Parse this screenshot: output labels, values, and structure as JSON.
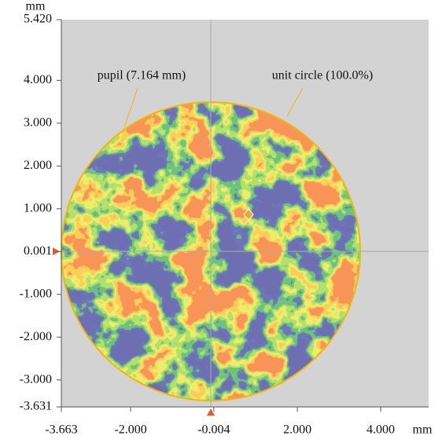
{
  "chart_data": {
    "type": "pupil-map",
    "annotations": [
      "pupil (7.164 mm)",
      "unit circle (100.0%)"
    ],
    "xlabel": "mm",
    "ylabel": "mm",
    "xlim": [
      -3.663,
      5.15
    ],
    "ylim": [
      -3.631,
      5.42
    ],
    "xticks": [
      {
        "value": -3.663,
        "label": "-3.663"
      },
      {
        "value": -2,
        "label": "-2.000"
      },
      {
        "value": -0.004,
        "label": "-0.004"
      },
      {
        "value": 2,
        "label": "2.000"
      },
      {
        "value": 4,
        "label": "4.000"
      }
    ],
    "yticks": [
      {
        "value": 5.42,
        "label": "5.420"
      },
      {
        "value": 4,
        "label": "4.000"
      },
      {
        "value": 3,
        "label": "3.000"
      },
      {
        "value": 2,
        "label": "2.000"
      },
      {
        "value": 1,
        "label": "1.000"
      },
      {
        "value": 0.001,
        "label": "0.001"
      },
      {
        "value": -1,
        "label": "-1.000"
      },
      {
        "value": -2,
        "label": "-2.000"
      },
      {
        "value": -3,
        "label": "-3.000"
      },
      {
        "value": -3.631,
        "label": "-3.631"
      }
    ]
  }
}
